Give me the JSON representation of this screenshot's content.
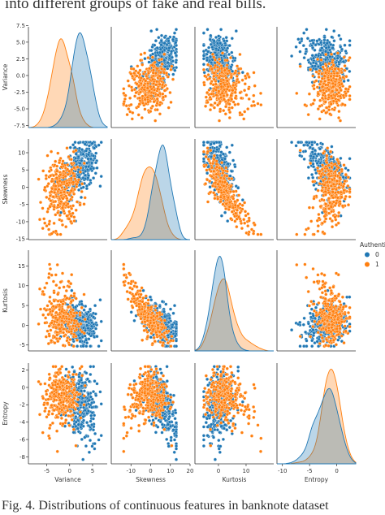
{
  "page": {
    "top_text": "into different groups of fake and real bills.",
    "caption": "Fig. 4.   Distributions of continuous features in banknote dataset"
  },
  "chart_data": {
    "type": "scatter",
    "variables": [
      "Variance",
      "Skewness",
      "Kurtosis",
      "Entropy"
    ],
    "ticks": {
      "Variance": [
        -7.5,
        -5.0,
        -2.5,
        0.0,
        2.5,
        5.0,
        7.5
      ],
      "Skewness": [
        -15,
        -10,
        -5,
        0,
        5,
        10
      ],
      "Kurtosis": [
        -5,
        0,
        5,
        10,
        15
      ],
      "Entropy": [
        -8,
        -6,
        -4,
        -2,
        0,
        2
      ]
    },
    "x_ticks": {
      "Variance": [
        -5,
        0,
        5
      ],
      "Skewness": [
        -10,
        0,
        10,
        20
      ],
      "Kurtosis": [
        0,
        10
      ],
      "Entropy": [
        -10,
        -5,
        0
      ]
    },
    "ranges": {
      "Variance": [
        -7.8,
        7.3
      ],
      "Skewness": [
        -15.2,
        14
      ],
      "Kurtosis": [
        -6.5,
        19
      ],
      "Entropy": [
        -8.8,
        2.8
      ]
    },
    "x_ranges": {
      "Variance": [
        -9,
        8.2
      ],
      "Skewness": [
        -20,
        20
      ],
      "Kurtosis": [
        -8.5,
        20
      ],
      "Entropy": [
        -11,
        3.5
      ]
    },
    "legend": {
      "title": "Authentic",
      "placement": "right",
      "entries": [
        {
          "label": "0",
          "color": "#1f77b4"
        },
        {
          "label": "1",
          "color": "#ff7f0e"
        }
      ]
    },
    "series": [
      {
        "class": "0",
        "color": "#1f77b4",
        "means": {
          "Variance": 2.3,
          "Skewness": 4.3,
          "Kurtosis": 0.8,
          "Entropy": -1.2
        },
        "sds": {
          "Variance": 2.0,
          "Skewness": 5.1,
          "Kurtosis": 3.2,
          "Entropy": 2.1
        }
      },
      {
        "class": "1",
        "color": "#ff7f0e",
        "means": {
          "Variance": -1.9,
          "Skewness": -1.0,
          "Kurtosis": 2.1,
          "Entropy": -1.3
        },
        "sds": {
          "Variance": 1.9,
          "Skewness": 5.4,
          "Kurtosis": 5.3,
          "Entropy": 2.1
        }
      }
    ]
  }
}
